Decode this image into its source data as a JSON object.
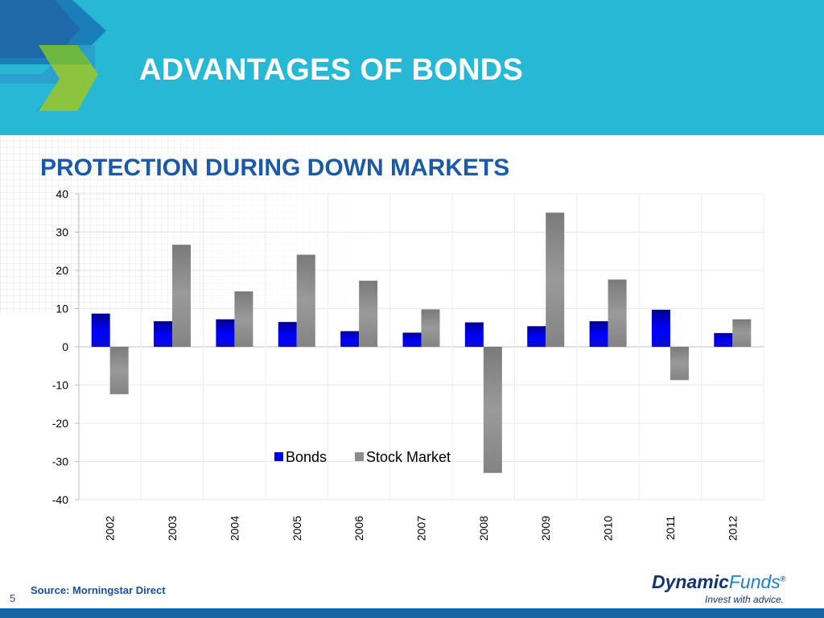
{
  "slide": {
    "title": "ADVANTAGES OF BONDS",
    "subtitle": "PROTECTION DURING DOWN MARKETS",
    "source": "Source: Morningstar Direct",
    "page_number": "5"
  },
  "brand": {
    "name_bold": "Dynamic",
    "name_light": "Funds",
    "registered": "®",
    "tagline": "Invest with advice."
  },
  "colors": {
    "header_bg": "#27b8d6",
    "title_text": "#ffffff",
    "subtitle_text": "#1a5aa6",
    "bonds": "#0000e6",
    "stock_market": "#8c8c8c",
    "footer_bar": "#1866a6"
  },
  "chart_data": {
    "type": "bar",
    "categories": [
      "2002",
      "2003",
      "2004",
      "2005",
      "2006",
      "2007",
      "2008",
      "2009",
      "2010",
      "2011",
      "2012"
    ],
    "series": [
      {
        "name": "Bonds",
        "values": [
          8.7,
          6.7,
          7.2,
          6.5,
          4.1,
          3.7,
          6.4,
          5.4,
          6.7,
          9.7,
          3.6
        ]
      },
      {
        "name": "Stock Market",
        "values": [
          -12.4,
          26.7,
          14.5,
          24.1,
          17.3,
          9.8,
          -33.0,
          35.1,
          17.6,
          -8.7,
          7.2
        ]
      }
    ],
    "yticks": [
      40,
      30,
      20,
      10,
      0,
      -10,
      -20,
      -30,
      -40
    ],
    "ylim": [
      -40,
      40
    ],
    "grid": true,
    "legend_position": "center"
  }
}
